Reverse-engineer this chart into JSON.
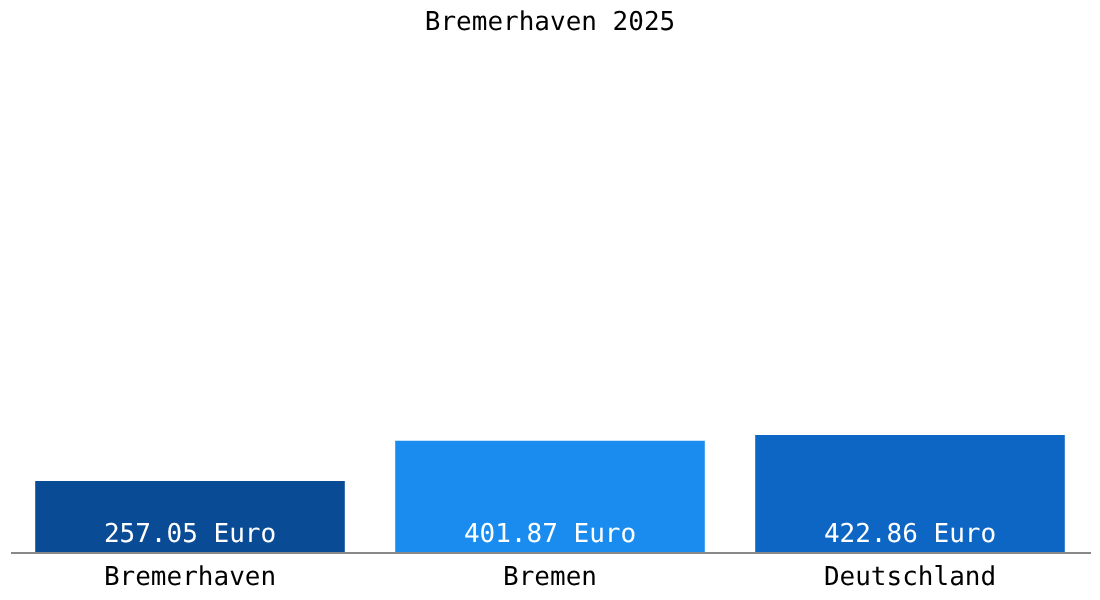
{
  "chart_data": {
    "type": "bar",
    "title": "Bremerhaven 2025",
    "categories": [
      "Bremerhaven",
      "Bremen",
      "Deutschland"
    ],
    "values": [
      257.05,
      401.87,
      422.86
    ],
    "colors": [
      "#0a4b96",
      "#1a8cf0",
      "#0d66c4"
    ],
    "value_labels": [
      "257.05 Euro",
      "401.87 Euro",
      "422.86 Euro"
    ]
  }
}
